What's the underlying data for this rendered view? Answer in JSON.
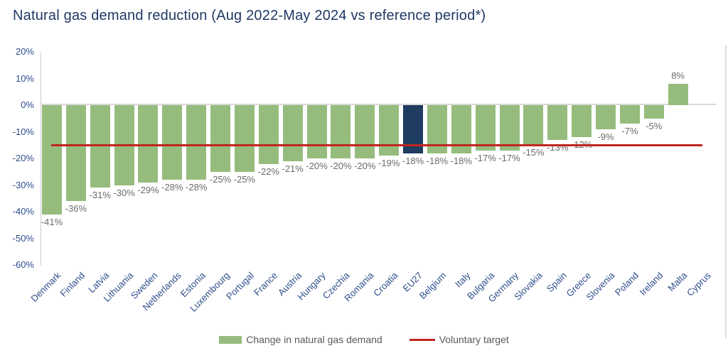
{
  "title": "Natural gas demand reduction (Aug 2022-May 2024 vs reference period*)",
  "legend": {
    "series_label": "Change in natural gas demand",
    "target_label": "Voluntary target"
  },
  "colors": {
    "bar": "#96BC7D",
    "bar_highlight": "#1F3C61",
    "target_line": "#C0261F",
    "title_text": "#1F3864",
    "axis_text": "#2F4E8C",
    "value_text": "#6B6B6B"
  },
  "chart_data": {
    "type": "bar",
    "title": "Natural gas demand reduction (Aug 2022-May 2024 vs reference period*)",
    "categories": [
      "Denmark",
      "Finland",
      "Latvia",
      "Lithuania",
      "Sweden",
      "Netherlands",
      "Estonia",
      "Luxembourg",
      "Portugal",
      "France",
      "Austria",
      "Hungary",
      "Czechia",
      "Romania",
      "Croatia",
      "EU27",
      "Belgium",
      "Italy",
      "Bulgaria",
      "Germany",
      "Slovakia",
      "Spain",
      "Greece",
      "Slovenia",
      "Poland",
      "Ireland",
      "Malta",
      "Cyprus"
    ],
    "values": [
      -41,
      -36,
      -31,
      -30,
      -29,
      -28,
      -28,
      -25,
      -25,
      -22,
      -21,
      -20,
      -20,
      -20,
      -19,
      -18,
      -18,
      -18,
      -17,
      -17,
      -15,
      -13,
      -12,
      -9,
      -7,
      -5,
      8,
      null
    ],
    "value_labels": [
      "-41%",
      "-36%",
      "-31%",
      "-30%",
      "-29%",
      "-28%",
      "-28%",
      "-25%",
      "-25%",
      "-22%",
      "-21%",
      "-20%",
      "-20%",
      "-20%",
      "-19%",
      "-18%",
      "-18%",
      "-18%",
      "-17%",
      "-17%",
      "-15%",
      "-13%",
      "-12%",
      "-9%",
      "-7%",
      "-5%",
      "8%",
      ""
    ],
    "highlight_category": "EU27",
    "series_name": "Change in natural gas demand",
    "target_name": "Voluntary target",
    "target_value": -15,
    "xlabel": "",
    "ylabel": "",
    "ylim": [
      -60,
      20
    ],
    "yticks_labels": [
      "20%",
      "10%",
      "0%",
      "-10%",
      "-20%",
      "-30%",
      "-40%",
      "-50%",
      "-60%"
    ],
    "ytick_values": [
      20,
      10,
      0,
      -10,
      -20,
      -30,
      -40,
      -50,
      -60
    ],
    "grid": "off",
    "legend_position": "bottom"
  }
}
